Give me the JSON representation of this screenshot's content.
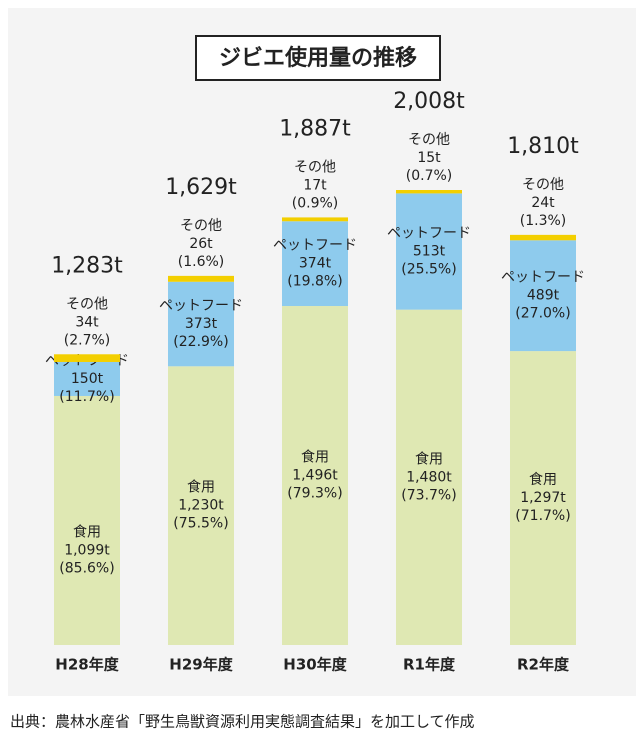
{
  "chart_data": {
    "type": "stacked-bar",
    "title": "ジビエ使用量の推移",
    "categories": [
      "H28年度",
      "H29年度",
      "H30年度",
      "R1年度",
      "R2年度"
    ],
    "series": [
      {
        "name": "食用",
        "color": "#dfe8b3",
        "values": [
          1099,
          1230,
          1496,
          1480,
          1297
        ],
        "value_labels": [
          "1,099t",
          "1,230t",
          "1,496t",
          "1,480t",
          "1,297t"
        ],
        "share_labels": [
          "(85.6%)",
          "(75.5%)",
          "(79.3%)",
          "(73.7%)",
          "(71.7%)"
        ]
      },
      {
        "name": "ペットフード",
        "color": "#8ecbed",
        "values": [
          150,
          373,
          374,
          513,
          489
        ],
        "value_labels": [
          "150t",
          "373t",
          "374t",
          "513t",
          "489t"
        ],
        "share_labels": [
          "(11.7%)",
          "(22.9%)",
          "(19.8%)",
          "(25.5%)",
          "(27.0%)"
        ]
      },
      {
        "name": "その他",
        "color": "#f3cf00",
        "values": [
          34,
          26,
          17,
          15,
          24
        ],
        "value_labels": [
          "34t",
          "26t",
          "17t",
          "15t",
          "24t"
        ],
        "share_labels": [
          "(2.7%)",
          "(1.6%)",
          "(0.9%)",
          "(0.7%)",
          "(1.3%)"
        ]
      }
    ],
    "totals": [
      1283,
      1629,
      1887,
      2008,
      1810
    ],
    "total_labels": [
      "1,283t",
      "1,629t",
      "1,887t",
      "2,008t",
      "1,810t"
    ],
    "source": "出典：農林水産省「野生鳥獣資源利用実態調査結果」を加工して作成"
  }
}
